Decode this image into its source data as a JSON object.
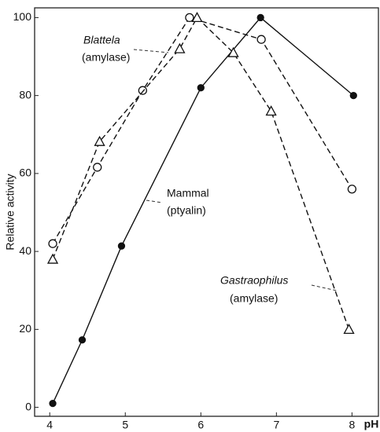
{
  "chart_data": {
    "type": "line",
    "xlabel": "pH",
    "ylabel": "Relative activity",
    "xlim": [
      3.8,
      8.35
    ],
    "ylim": [
      -2.3,
      102.5
    ],
    "xticks": [
      4,
      5,
      6,
      7,
      8
    ],
    "yticks": [
      0,
      20,
      40,
      60,
      80,
      100
    ],
    "series": [
      {
        "name": "Mammal (ptyalin)",
        "color": "#111111",
        "marker": "filled-circle",
        "dashed": false,
        "x": [
          4.04,
          4.43,
          4.95,
          6.0,
          6.79,
          8.02
        ],
        "values": [
          1,
          17.3,
          41.4,
          82,
          100,
          80
        ]
      },
      {
        "name": "Blattela (amylase)",
        "color": "#111111",
        "marker": "open-circle",
        "dashed": true,
        "x": [
          4.04,
          4.63,
          5.23,
          5.85,
          6.8,
          8.0
        ],
        "values": [
          42,
          61.6,
          81.3,
          100,
          94.4,
          56
        ]
      },
      {
        "name": "Gastraophilus (amylase)",
        "color": "#111111",
        "marker": "triangle",
        "dashed": true,
        "x": [
          4.04,
          4.66,
          5.72,
          5.95,
          6.43,
          6.93,
          7.96
        ],
        "values": [
          38,
          68.2,
          92,
          100,
          91,
          76,
          20
        ]
      }
    ],
    "annotations": [
      "Blattela",
      "(amylase)",
      "Mammal",
      "(ptyalin)",
      "Gastraophilus",
      "(amylase)"
    ]
  }
}
